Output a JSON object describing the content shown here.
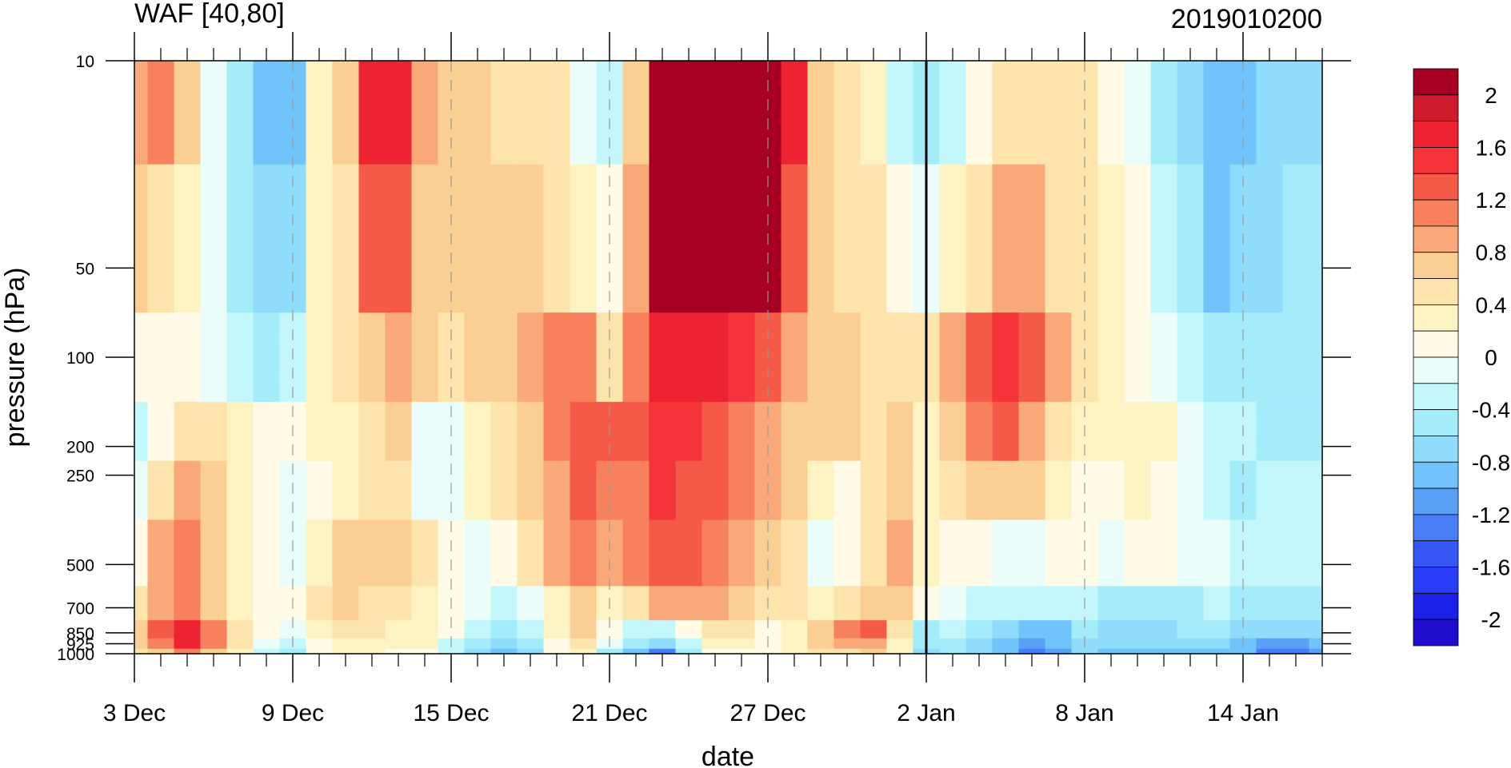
{
  "chart_data": {
    "type": "heatmap",
    "title": "WAF [40,80]",
    "subtitle": "2019010200",
    "xlabel": "date",
    "ylabel": "pressure (hPa)",
    "x_dates": [
      "2018-12-03",
      "2018-12-04",
      "2018-12-05",
      "2018-12-06",
      "2018-12-07",
      "2018-12-08",
      "2018-12-09",
      "2018-12-10",
      "2018-12-11",
      "2018-12-12",
      "2018-12-13",
      "2018-12-14",
      "2018-12-15",
      "2018-12-16",
      "2018-12-17",
      "2018-12-18",
      "2018-12-19",
      "2018-12-20",
      "2018-12-21",
      "2018-12-22",
      "2018-12-23",
      "2018-12-24",
      "2018-12-25",
      "2018-12-26",
      "2018-12-27",
      "2018-12-28",
      "2018-12-29",
      "2018-12-30",
      "2018-12-31",
      "2019-01-01",
      "2019-01-02",
      "2019-01-03",
      "2019-01-04",
      "2019-01-05",
      "2019-01-06",
      "2019-01-07",
      "2019-01-08",
      "2019-01-09",
      "2019-01-10",
      "2019-01-11",
      "2019-01-12",
      "2019-01-13",
      "2019-01-14",
      "2019-01-15",
      "2019-01-16",
      "2019-01-17"
    ],
    "x_tick_labels": [
      "3 Dec",
      "9 Dec",
      "15 Dec",
      "21 Dec",
      "27 Dec",
      "2 Jan",
      "8 Jan",
      "14 Jan"
    ],
    "x_tick_dates": [
      "2018-12-03",
      "2018-12-09",
      "2018-12-15",
      "2018-12-21",
      "2018-12-27",
      "2019-01-02",
      "2019-01-08",
      "2019-01-14"
    ],
    "analysis_date": "2019-01-02",
    "y_levels": [
      10,
      50,
      100,
      200,
      250,
      500,
      700,
      850,
      925,
      1000
    ],
    "y_tick_labels": [
      "10",
      "50",
      "100",
      "200",
      "250",
      "500",
      "700",
      "850",
      "925",
      "1000"
    ],
    "y_scale": "log",
    "y_reversed": true,
    "ylim": [
      10,
      1000
    ],
    "grid": "dashed vertical lines at labeled dates",
    "colorbar": {
      "labels": [
        "2",
        "1.6",
        "1.2",
        "0.8",
        "0.4",
        "0",
        "-0.4",
        "-0.8",
        "-1.2",
        "-1.6",
        "-2"
      ],
      "levels": [
        -2.2,
        -2.0,
        -1.8,
        -1.6,
        -1.4,
        -1.2,
        -1.0,
        -0.8,
        -0.6,
        -0.4,
        -0.2,
        0,
        0.2,
        0.4,
        0.6,
        0.8,
        1.0,
        1.2,
        1.4,
        1.6,
        1.8,
        2.0,
        2.2
      ],
      "colors": [
        "#1f0ccd",
        "#1b1fe8",
        "#2a3ef7",
        "#3557f5",
        "#4a7df5",
        "#5aa0f7",
        "#70c4fb",
        "#8fdcfd",
        "#a5ecfb",
        "#c4f7fb",
        "#eafdfb",
        "#fffbe6",
        "#fdf2c2",
        "#fce4ac",
        "#fbcf94",
        "#f9a879",
        "#f7815c",
        "#f55948",
        "#f43439",
        "#ed2332",
        "#cf1b2e",
        "#a50021"
      ]
    },
    "values": [
      [
        0.9,
        1.0,
        0.6,
        -0.2,
        -0.6,
        -0.9,
        -0.9,
        0.3,
        0.6,
        1.7,
        1.6,
        0.9,
        0.7,
        0.7,
        0.5,
        0.5,
        0.4,
        -0.1,
        -0.3,
        0.6,
        2.3,
        2.7,
        2.8,
        2.8,
        2.8,
        1.6,
        0.6,
        0.4,
        0.3,
        -0.3,
        -0.6,
        -0.4,
        0.1,
        0.4,
        0.4,
        0.5,
        0.5,
        0.1,
        -0.1,
        -0.6,
        -0.8,
        -1.0,
        -1.0,
        -0.8,
        -0.7,
        -0.7
      ],
      [
        0.6,
        0.5,
        0.3,
        -0.2,
        -0.5,
        -0.7,
        -0.7,
        0.3,
        0.5,
        1.3,
        1.2,
        0.7,
        0.6,
        0.6,
        0.6,
        0.6,
        0.5,
        0.2,
        0.1,
        0.8,
        2.1,
        2.5,
        2.5,
        2.3,
        2.1,
        1.3,
        0.7,
        0.5,
        0.4,
        0.1,
        -0.1,
        0.2,
        0.5,
        0.9,
        0.9,
        0.5,
        0.4,
        0.2,
        0.0,
        -0.3,
        -0.6,
        -0.9,
        -0.8,
        -0.7,
        -0.6,
        -0.6
      ],
      [
        0.1,
        0.0,
        0.1,
        -0.2,
        -0.4,
        -0.5,
        -0.4,
        0.3,
        0.4,
        0.7,
        0.8,
        0.6,
        0.5,
        0.6,
        0.7,
        0.9,
        1.0,
        1.1,
        0.5,
        1.0,
        1.6,
        1.7,
        1.7,
        1.5,
        1.2,
        0.9,
        0.7,
        0.6,
        0.5,
        0.4,
        0.4,
        0.8,
        1.2,
        1.5,
        1.2,
        0.8,
        0.4,
        0.2,
        0.0,
        -0.2,
        -0.4,
        -0.6,
        -0.6,
        -0.6,
        -0.5,
        -0.5
      ],
      [
        -0.4,
        0.1,
        0.4,
        0.5,
        0.2,
        0.0,
        0.1,
        0.2,
        0.3,
        0.4,
        0.6,
        -0.1,
        -0.2,
        0.3,
        0.5,
        0.7,
        1.0,
        1.3,
        1.2,
        1.2,
        1.5,
        1.4,
        1.3,
        1.1,
        0.9,
        0.7,
        0.6,
        0.6,
        0.5,
        0.6,
        0.3,
        0.7,
        1.0,
        1.2,
        0.9,
        0.5,
        0.2,
        0.2,
        0.3,
        0.2,
        -0.1,
        -0.3,
        -0.4,
        -0.5,
        -0.5,
        -0.5
      ],
      [
        -0.2,
        0.5,
        0.8,
        0.6,
        0.2,
        0.0,
        -0.1,
        0.1,
        0.3,
        0.4,
        0.5,
        -0.1,
        -0.2,
        0.3,
        0.4,
        0.6,
        0.9,
        1.2,
        1.0,
        1.1,
        1.4,
        1.3,
        1.2,
        1.0,
        0.8,
        0.6,
        0.3,
        0.1,
        0.5,
        0.7,
        0.2,
        0.4,
        0.6,
        0.7,
        0.6,
        0.3,
        0.1,
        0.1,
        0.2,
        0.1,
        -0.1,
        -0.3,
        -0.5,
        -0.4,
        -0.4,
        -0.4
      ],
      [
        0.1,
        0.8,
        1.0,
        0.6,
        0.3,
        0.0,
        -0.1,
        0.3,
        0.7,
        0.6,
        0.6,
        0.4,
        0.0,
        -0.2,
        0.1,
        0.4,
        0.8,
        1.1,
        0.9,
        1.0,
        1.3,
        1.2,
        1.1,
        0.8,
        0.6,
        0.5,
        -0.1,
        0.0,
        0.5,
        0.8,
        0.3,
        0.1,
        0.0,
        -0.2,
        -0.1,
        0.0,
        0.0,
        -0.1,
        0.0,
        0.1,
        -0.1,
        -0.2,
        -0.3,
        -0.3,
        -0.4,
        -0.4
      ],
      [
        0.4,
        0.9,
        1.1,
        0.7,
        0.3,
        0.0,
        0.0,
        0.4,
        0.6,
        0.5,
        0.4,
        0.3,
        0.1,
        -0.1,
        -0.3,
        -0.2,
        0.3,
        0.7,
        0.3,
        0.5,
        0.9,
        0.9,
        0.8,
        0.6,
        0.5,
        0.4,
        0.3,
        0.4,
        0.6,
        0.6,
        0.0,
        -0.2,
        -0.3,
        -0.4,
        -0.4,
        -0.4,
        -0.4,
        -0.5,
        -0.5,
        -0.5,
        -0.5,
        -0.4,
        -0.5,
        -0.6,
        -0.6,
        -0.6
      ],
      [
        0.7,
        1.2,
        1.6,
        1.0,
        0.4,
        0.0,
        -0.2,
        0.2,
        0.5,
        0.4,
        0.3,
        0.3,
        0.0,
        -0.4,
        -0.6,
        -0.4,
        0.2,
        0.6,
        0.0,
        -0.4,
        -0.3,
        0.1,
        0.5,
        0.4,
        0.0,
        0.3,
        0.7,
        1.0,
        1.2,
        0.5,
        -0.5,
        -0.4,
        -0.6,
        -0.8,
        -1.0,
        -0.9,
        -0.6,
        -0.7,
        -0.7,
        -0.7,
        -0.6,
        -0.6,
        -0.7,
        -0.8,
        -0.8,
        -0.8
      ],
      [
        0.7,
        1.1,
        1.7,
        1.0,
        0.4,
        -0.1,
        -0.4,
        0.1,
        0.3,
        0.3,
        0.2,
        0.2,
        -0.3,
        -0.6,
        -0.8,
        -0.6,
        0.1,
        0.4,
        -0.2,
        -0.6,
        -0.8,
        -0.3,
        0.2,
        0.2,
        0.0,
        0.2,
        0.6,
        0.8,
        0.9,
        0.3,
        -0.6,
        -0.5,
        -0.7,
        -0.9,
        -1.2,
        -1.0,
        -0.7,
        -0.8,
        -0.8,
        -0.8,
        -0.7,
        -0.7,
        -0.9,
        -1.1,
        -1.2,
        -1.0
      ],
      [
        0.5,
        0.7,
        1.1,
        0.7,
        0.2,
        -0.3,
        -0.6,
        0.0,
        0.2,
        0.2,
        0.1,
        0.1,
        -0.4,
        -0.7,
        -0.9,
        -0.7,
        0.0,
        0.3,
        -0.5,
        -0.9,
        -1.3,
        -0.6,
        0.1,
        0.1,
        0.1,
        0.2,
        0.5,
        0.5,
        0.6,
        0.2,
        -0.7,
        -0.6,
        -0.8,
        -1.0,
        -1.3,
        -1.1,
        -0.8,
        -0.9,
        -1.0,
        -1.0,
        -0.9,
        -0.9,
        -1.0,
        -1.3,
        -1.4,
        -1.2
      ]
    ]
  }
}
